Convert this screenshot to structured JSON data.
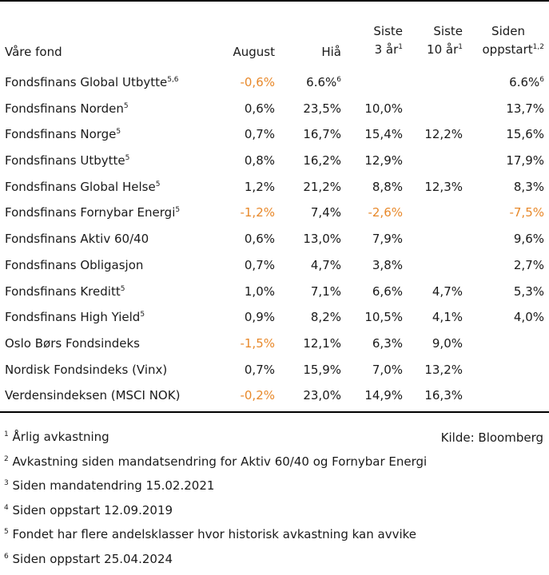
{
  "header": {
    "fund_label": "Våre fond",
    "august": "August",
    "ytd": "Hiå",
    "three_year_line1": "Siste",
    "three_year_line2": "3 år",
    "three_year_sup": "1",
    "ten_year_line1": "Siste",
    "ten_year_line2": "10 år",
    "ten_year_sup": "1",
    "since_line1": "Siden",
    "since_line2": "oppstart",
    "since_sup": "1,2"
  },
  "rows": [
    {
      "name": "Fondsfinans Global Utbytte",
      "sup": "5,6",
      "august": "-0,6%",
      "ytd": "6.6%",
      "ytd_sup": "6",
      "y3": "",
      "y10": "",
      "since": "6.6%",
      "since_sup": "6"
    },
    {
      "name": "Fondsfinans Norden",
      "sup": "5",
      "august": "0,6%",
      "ytd": "23,5%",
      "ytd_sup": "",
      "y3": "10,0%",
      "y10": "",
      "since": "13,7%",
      "since_sup": ""
    },
    {
      "name": "Fondsfinans Norge",
      "sup": "5",
      "august": "0,7%",
      "ytd": "16,7%",
      "ytd_sup": "",
      "y3": "15,4%",
      "y10": "12,2%",
      "since": "15,6%",
      "since_sup": ""
    },
    {
      "name": "Fondsfinans Utbytte",
      "sup": "5",
      "august": "0,8%",
      "ytd": "16,2%",
      "ytd_sup": "",
      "y3": "12,9%",
      "y10": "",
      "since": "17,9%",
      "since_sup": ""
    },
    {
      "name": "Fondsfinans Global Helse",
      "sup": "5",
      "august": "1,2%",
      "ytd": "21,2%",
      "ytd_sup": "",
      "y3": "8,8%",
      "y10": "12,3%",
      "since": "8,3%",
      "since_sup": ""
    },
    {
      "name": "Fondsfinans Fornybar Energi",
      "sup": "5",
      "august": "-1,2%",
      "ytd": "7,4%",
      "ytd_sup": "",
      "y3": "-2,6%",
      "y10": "",
      "since": "-7,5%",
      "since_sup": ""
    },
    {
      "name": "Fondsfinans Aktiv 60/40",
      "sup": "",
      "august": "0,6%",
      "ytd": "13,0%",
      "ytd_sup": "",
      "y3": "7,9%",
      "y10": "",
      "since": "9,6%",
      "since_sup": ""
    },
    {
      "name": "Fondsfinans Obligasjon",
      "sup": "",
      "august": "0,7%",
      "ytd": "4,7%",
      "ytd_sup": "",
      "y3": "3,8%",
      "y10": "",
      "since": "2,7%",
      "since_sup": ""
    },
    {
      "name": "Fondsfinans Kreditt",
      "sup": "5",
      "august": "1,0%",
      "ytd": "7,1%",
      "ytd_sup": "",
      "y3": "6,6%",
      "y10": "4,7%",
      "since": "5,3%",
      "since_sup": ""
    },
    {
      "name": "Fondsfinans High Yield",
      "sup": "5",
      "august": "0,9%",
      "ytd": "8,2%",
      "ytd_sup": "",
      "y3": "10,5%",
      "y10": "4,1%",
      "since": "4,0%",
      "since_sup": ""
    },
    {
      "name": "Oslo Børs Fondsindeks",
      "sup": "",
      "august": "-1,5%",
      "ytd": "12,1%",
      "ytd_sup": "",
      "y3": "6,3%",
      "y10": "9,0%",
      "since": "",
      "since_sup": ""
    },
    {
      "name": "Nordisk Fondsindeks (Vinx)",
      "sup": "",
      "august": "0,7%",
      "ytd": "15,9%",
      "ytd_sup": "",
      "y3": "7,0%",
      "y10": "13,2%",
      "since": "",
      "since_sup": ""
    },
    {
      "name": "Verdensindeksen (MSCI NOK)",
      "sup": "",
      "august": "-0,2%",
      "ytd": "23,0%",
      "ytd_sup": "",
      "y3": "14,9%",
      "y10": "16,3%",
      "since": "",
      "since_sup": ""
    }
  ],
  "footnotes": [
    {
      "num": "1",
      "text": "Årlig avkastning"
    },
    {
      "num": "2",
      "text": "Avkastning siden mandatsendring for Aktiv 60/40 og Fornybar Energi"
    },
    {
      "num": "3",
      "text": "Siden mandatendring 15.02.2021"
    },
    {
      "num": "4",
      "text": "Siden oppstart 12.09.2019"
    },
    {
      "num": "5",
      "text": "Fondet har flere andelsklasser hvor historisk avkastning kan avvike"
    },
    {
      "num": "6",
      "text": "Siden oppstart 25.04.2024"
    }
  ],
  "source": "Kilde: Bloomberg",
  "colors": {
    "negative": "#e8892b",
    "text": "#1a1a1a",
    "rule": "#000000"
  }
}
